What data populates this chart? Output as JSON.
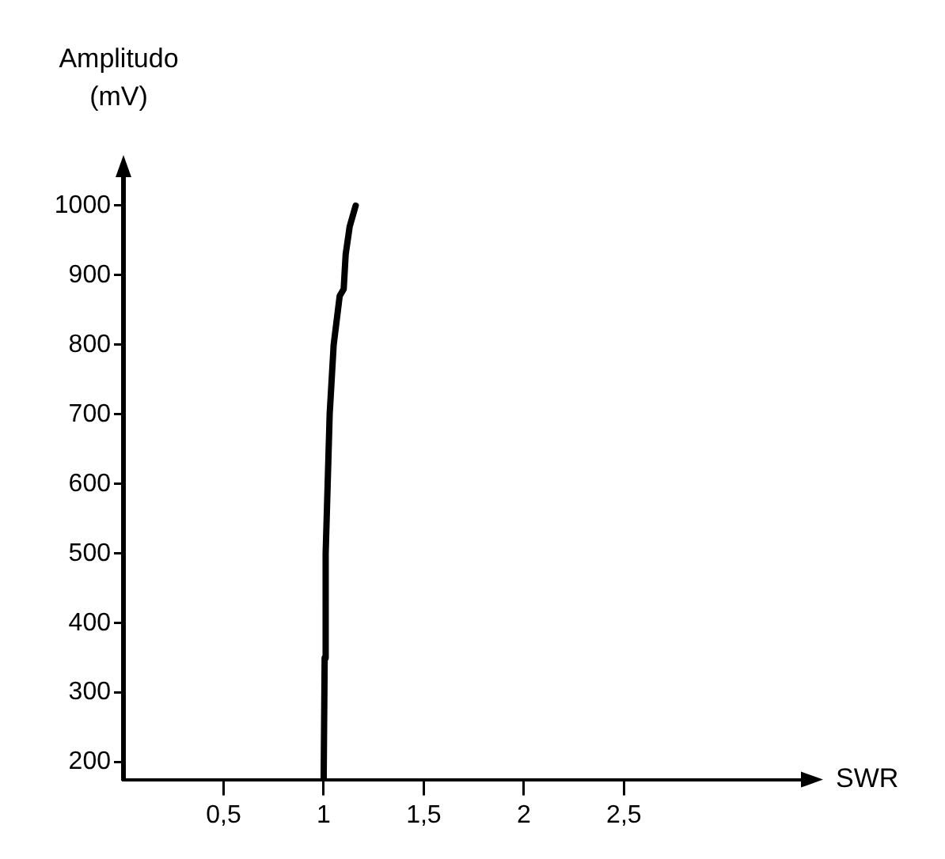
{
  "chart_data": {
    "type": "line",
    "xlabel": "SWR",
    "ylabel": "Amplitudo (mV)",
    "x": [
      1.0,
      1.005,
      1.01,
      1.02,
      1.03,
      1.05,
      1.08,
      1.1,
      1.11,
      1.13,
      1.16
    ],
    "series": [
      {
        "color": "#000000",
        "values": [
          175,
          350,
          500,
          600,
          700,
          800,
          870,
          880,
          930,
          970,
          1000
        ]
      }
    ],
    "xlim": [
      0,
      3.4
    ],
    "xticks": [
      {
        "value": 0.5,
        "label": "0,5"
      },
      1,
      {
        "value": 1.5,
        "label": "1,5"
      },
      2,
      {
        "value": 2.5,
        "label": "2,5"
      }
    ],
    "ylim": [
      175,
      1050
    ],
    "yticks": [
      200,
      300,
      400,
      500,
      600,
      700,
      800,
      900,
      1000
    ],
    "grid": false,
    "legend": false,
    "marker": "none",
    "line_style": "solid"
  }
}
